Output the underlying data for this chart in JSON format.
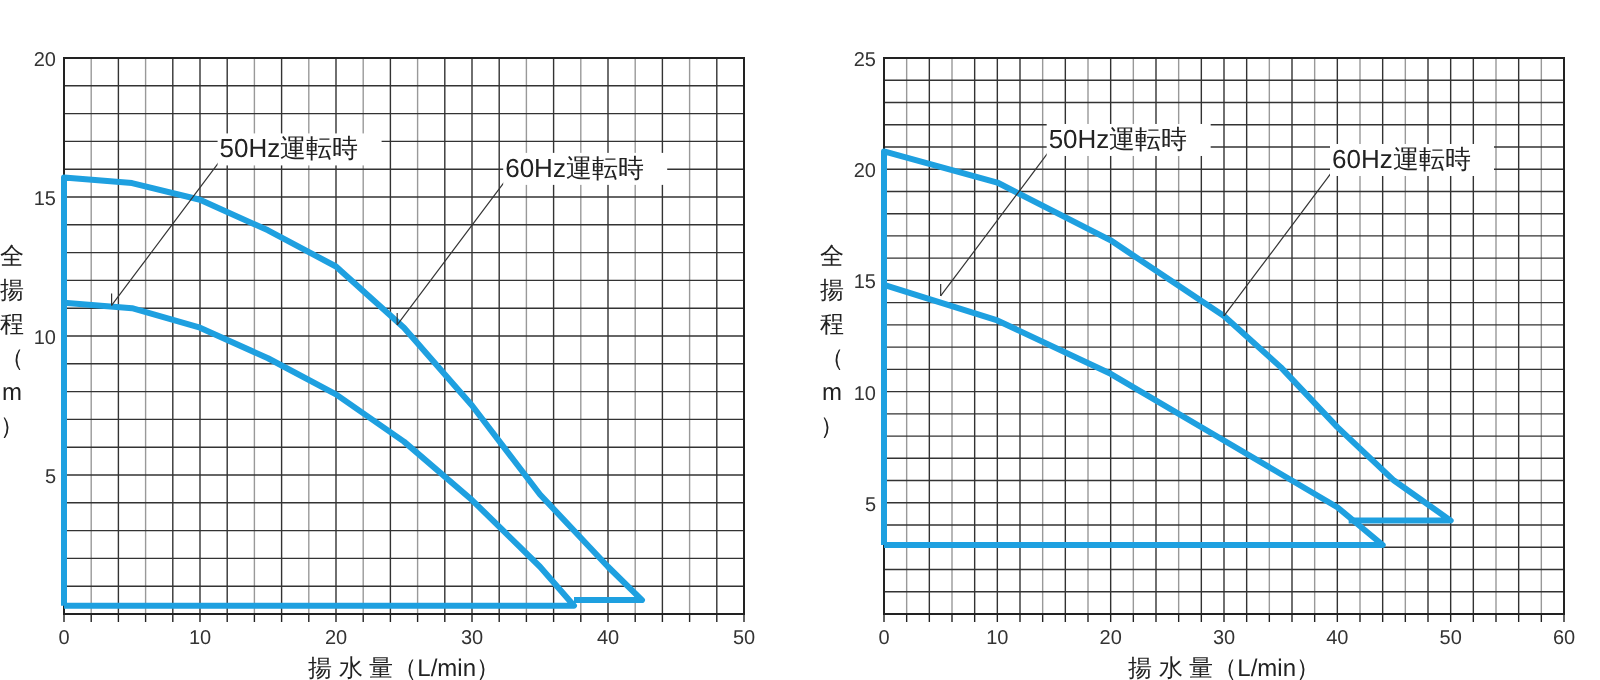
{
  "chart_data": [
    {
      "type": "line",
      "xlabel": "揚 水 量（L/min）",
      "ylabel": "全揚程（m）",
      "xlim": [
        0,
        50
      ],
      "ylim": [
        0,
        20
      ],
      "grid": true,
      "marker": "none",
      "line_style": "solid",
      "xticks": [
        0,
        {
          "value": 2,
          "label": null
        },
        {
          "value": 4,
          "label": null
        },
        {
          "value": 6,
          "label": null
        },
        {
          "value": 8,
          "label": null
        },
        10,
        {
          "value": 12,
          "label": null
        },
        {
          "value": 14,
          "label": null
        },
        {
          "value": 16,
          "label": null
        },
        {
          "value": 18,
          "label": null
        },
        20,
        {
          "value": 22,
          "label": null
        },
        {
          "value": 24,
          "label": null
        },
        {
          "value": 26,
          "label": null
        },
        {
          "value": 28,
          "label": null
        },
        30,
        {
          "value": 32,
          "label": null
        },
        {
          "value": 34,
          "label": null
        },
        {
          "value": 36,
          "label": null
        },
        {
          "value": 38,
          "label": null
        },
        40,
        {
          "value": 42,
          "label": null
        },
        {
          "value": 44,
          "label": null
        },
        {
          "value": 46,
          "label": null
        },
        {
          "value": 48,
          "label": null
        },
        50
      ],
      "yticks": [
        {
          "value": 0,
          "label": null
        },
        {
          "value": 1,
          "label": null
        },
        {
          "value": 2,
          "label": null
        },
        {
          "value": 3,
          "label": null
        },
        {
          "value": 4,
          "label": null
        },
        5,
        {
          "value": 6,
          "label": null
        },
        {
          "value": 7,
          "label": null
        },
        {
          "value": 8,
          "label": null
        },
        {
          "value": 9,
          "label": null
        },
        10,
        {
          "value": 11,
          "label": null
        },
        {
          "value": 12,
          "label": null
        },
        {
          "value": 13,
          "label": null
        },
        {
          "value": 14,
          "label": null
        },
        15,
        {
          "value": 16,
          "label": null
        },
        {
          "value": 17,
          "label": null
        },
        {
          "value": 18,
          "label": null
        },
        {
          "value": 19,
          "label": null
        },
        20
      ],
      "series": [
        {
          "color": "#1ea0e0",
          "x": [
            0,
            0,
            5,
            10,
            15,
            20,
            25,
            30,
            35,
            40,
            42.5,
            37.5
          ],
          "values": [
            0.3,
            15.7,
            15.5,
            14.9,
            13.8,
            12.5,
            10.3,
            7.5,
            4.3,
            1.7,
            0.5,
            0.5
          ]
        },
        {
          "color": "#1ea0e0",
          "x": [
            0,
            5,
            10,
            15,
            20,
            25,
            30,
            35,
            37.5,
            0
          ],
          "values": [
            11.2,
            11.0,
            10.3,
            9.2,
            7.9,
            6.2,
            4.1,
            1.7,
            0.3,
            0.3
          ]
        }
      ],
      "annotations": [
        {
          "text": "50Hz運転時",
          "x": 3.5,
          "y": 11.1
        },
        {
          "text": "60Hz運転時",
          "x": 24.5,
          "y": 10.4
        }
      ]
    },
    {
      "type": "line",
      "xlabel": "揚 水 量（L/min）",
      "ylabel": "全揚程（m）",
      "xlim": [
        0,
        60
      ],
      "ylim": [
        0,
        25
      ],
      "grid": true,
      "marker": "none",
      "line_style": "solid",
      "xticks": [
        0,
        {
          "value": 2,
          "label": null
        },
        {
          "value": 4,
          "label": null
        },
        {
          "value": 6,
          "label": null
        },
        {
          "value": 8,
          "label": null
        },
        10,
        {
          "value": 12,
          "label": null
        },
        {
          "value": 14,
          "label": null
        },
        {
          "value": 16,
          "label": null
        },
        {
          "value": 18,
          "label": null
        },
        20,
        {
          "value": 22,
          "label": null
        },
        {
          "value": 24,
          "label": null
        },
        {
          "value": 26,
          "label": null
        },
        {
          "value": 28,
          "label": null
        },
        30,
        {
          "value": 32,
          "label": null
        },
        {
          "value": 34,
          "label": null
        },
        {
          "value": 36,
          "label": null
        },
        {
          "value": 38,
          "label": null
        },
        40,
        {
          "value": 42,
          "label": null
        },
        {
          "value": 44,
          "label": null
        },
        {
          "value": 46,
          "label": null
        },
        {
          "value": 48,
          "label": null
        },
        50,
        {
          "value": 52,
          "label": null
        },
        {
          "value": 54,
          "label": null
        },
        {
          "value": 56,
          "label": null
        },
        {
          "value": 58,
          "label": null
        },
        60
      ],
      "yticks": [
        {
          "value": 0,
          "label": null
        },
        {
          "value": 1,
          "label": null
        },
        {
          "value": 2,
          "label": null
        },
        {
          "value": 3,
          "label": null
        },
        {
          "value": 4,
          "label": null
        },
        5,
        {
          "value": 6,
          "label": null
        },
        {
          "value": 7,
          "label": null
        },
        {
          "value": 8,
          "label": null
        },
        {
          "value": 9,
          "label": null
        },
        10,
        {
          "value": 11,
          "label": null
        },
        {
          "value": 12,
          "label": null
        },
        {
          "value": 13,
          "label": null
        },
        {
          "value": 14,
          "label": null
        },
        15,
        {
          "value": 16,
          "label": null
        },
        {
          "value": 17,
          "label": null
        },
        {
          "value": 18,
          "label": null
        },
        {
          "value": 19,
          "label": null
        },
        20,
        {
          "value": 21,
          "label": null
        },
        {
          "value": 22,
          "label": null
        },
        {
          "value": 23,
          "label": null
        },
        {
          "value": 24,
          "label": null
        },
        25
      ],
      "series": [
        {
          "color": "#1ea0e0",
          "x": [
            0,
            0,
            10,
            20,
            30,
            35,
            40,
            45,
            50,
            41
          ],
          "values": [
            3.1,
            20.8,
            19.4,
            16.8,
            13.4,
            11.1,
            8.4,
            6.0,
            4.2,
            4.2
          ]
        },
        {
          "color": "#1ea0e0",
          "x": [
            0,
            10,
            20,
            30,
            40,
            44,
            0
          ],
          "values": [
            14.8,
            13.2,
            10.8,
            7.8,
            4.8,
            3.1,
            3.1
          ]
        }
      ],
      "annotations": [
        {
          "text": "50Hz運転時",
          "x": 5,
          "y": 14.3
        },
        {
          "text": "60Hz運転時",
          "x": 30,
          "y": 13.4
        }
      ]
    }
  ]
}
